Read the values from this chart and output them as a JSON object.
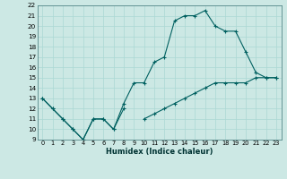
{
  "xlabel": "Humidex (Indice chaleur)",
  "bg_color": "#cce8e4",
  "line_color": "#006060",
  "grid_color": "#aad8d4",
  "xlim": [
    -0.5,
    23.5
  ],
  "ylim": [
    9,
    22
  ],
  "xticks": [
    0,
    1,
    2,
    3,
    4,
    5,
    6,
    7,
    8,
    9,
    10,
    11,
    12,
    13,
    14,
    15,
    16,
    17,
    18,
    19,
    20,
    21,
    22,
    23
  ],
  "yticks": [
    9,
    10,
    11,
    12,
    13,
    14,
    15,
    16,
    17,
    18,
    19,
    20,
    21,
    22
  ],
  "line1_x": [
    0,
    1,
    2,
    3,
    4,
    5,
    6,
    7,
    8
  ],
  "line1_y": [
    13,
    12,
    11,
    10,
    9,
    11,
    11,
    10,
    12
  ],
  "line2_x": [
    0,
    1,
    2,
    3,
    4,
    5,
    6,
    7,
    8,
    9,
    10,
    11,
    12,
    13,
    14,
    15,
    16,
    17,
    18,
    19,
    20,
    21,
    22,
    23
  ],
  "line2_y": [
    13,
    12,
    11,
    10,
    9,
    11,
    11,
    10,
    12.5,
    14.5,
    14.5,
    16.5,
    17,
    20.5,
    21,
    21,
    21.5,
    20,
    19.5,
    19.5,
    17.5,
    15.5,
    15,
    15
  ],
  "line3_x": [
    10,
    11,
    12,
    13,
    14,
    15,
    16,
    17,
    18,
    19,
    20,
    21,
    22,
    23
  ],
  "line3_y": [
    11,
    11.5,
    12,
    12.5,
    13,
    13.5,
    14,
    14.5,
    14.5,
    14.5,
    14.5,
    15,
    15,
    15
  ]
}
